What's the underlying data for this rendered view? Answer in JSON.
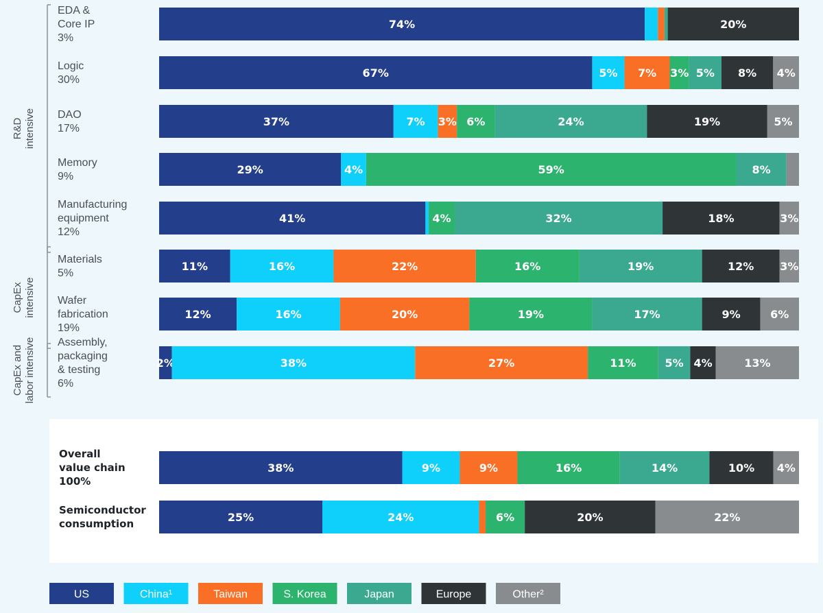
{
  "chart_data": {
    "type": "bar",
    "orientation": "horizontal",
    "stacked": true,
    "normalized": true,
    "series_names": [
      "US",
      "China¹",
      "Taiwan",
      "S. Korea",
      "Japan",
      "Europe",
      "Other²"
    ],
    "colors": [
      "#233e8b",
      "#0fd0fb",
      "#f96f26",
      "#2cb36d",
      "#3aa98f",
      "#2f3437",
      "#888c8e"
    ],
    "label_colors": [
      "#ffffff",
      "#ffffff",
      "#ffffff",
      "#ffffff",
      "#ffffff",
      "#ffffff",
      "#ffffff"
    ],
    "groups": [
      {
        "label_lines": [
          "R&D",
          "intensive"
        ],
        "rows": [
          0,
          4
        ]
      },
      {
        "label_lines": [
          "CapEx",
          "intensive"
        ],
        "rows": [
          5,
          6
        ]
      },
      {
        "label_lines": [
          "CapEx and",
          "labor intensive"
        ],
        "rows": [
          7,
          7
        ]
      }
    ],
    "rows": [
      {
        "label_lines": [
          "EDA &",
          "Core IP",
          "3%"
        ],
        "values": [
          74,
          2,
          1,
          0,
          0.5,
          20,
          0
        ],
        "labels": [
          "74%",
          "",
          "",
          "",
          "",
          "20%",
          ""
        ]
      },
      {
        "label_lines": [
          "Logic",
          "30%"
        ],
        "values": [
          67,
          5,
          7,
          3,
          5,
          8,
          4
        ],
        "labels": [
          "67%",
          "5%",
          "7%",
          "3%",
          "5%",
          "8%",
          "4%"
        ]
      },
      {
        "label_lines": [
          "DAO",
          "17%"
        ],
        "values": [
          37,
          7,
          3,
          6,
          24,
          19,
          5
        ],
        "labels": [
          "37%",
          "7%",
          "3%",
          "6%",
          "24%",
          "19%",
          "5%"
        ]
      },
      {
        "label_lines": [
          "Memory",
          "9%"
        ],
        "values": [
          29,
          4,
          0,
          59,
          8,
          0,
          2
        ],
        "labels": [
          "29%",
          "4%",
          "",
          "59%",
          "8%",
          "",
          ""
        ]
      },
      {
        "label_lines": [
          "Manufacturing",
          "equipment",
          "12%"
        ],
        "values": [
          41,
          0.5,
          0,
          4,
          32,
          18,
          3
        ],
        "labels": [
          "41%",
          "",
          "",
          "4%",
          "32%",
          "18%",
          "3%"
        ]
      },
      {
        "label_lines": [
          "Materials",
          "5%"
        ],
        "values": [
          11,
          16,
          22,
          16,
          19,
          12,
          3
        ],
        "labels": [
          "11%",
          "16%",
          "22%",
          "16%",
          "19%",
          "12%",
          "3%"
        ]
      },
      {
        "label_lines": [
          "Wafer",
          "fabrication",
          "19%"
        ],
        "values": [
          12,
          16,
          20,
          19,
          17,
          9,
          6
        ],
        "labels": [
          "12%",
          "16%",
          "20%",
          "19%",
          "17%",
          "9%",
          "6%"
        ]
      },
      {
        "label_lines": [
          "Assembly,",
          "packaging",
          "& testing",
          "6%"
        ],
        "values": [
          2,
          38,
          27,
          11,
          5,
          4,
          13
        ],
        "labels": [
          "2%",
          "38%",
          "27%",
          "11%",
          "5%",
          "4%",
          "13%"
        ]
      }
    ],
    "totals": [
      {
        "label_lines": [
          "Overall",
          "value chain",
          "100%"
        ],
        "values": [
          38,
          9,
          9,
          16,
          14,
          10,
          4
        ],
        "labels": [
          "38%",
          "9%",
          "9%",
          "16%",
          "14%",
          "10%",
          "4%"
        ]
      },
      {
        "label_lines": [
          "Semiconductor",
          "consumption"
        ],
        "values": [
          25,
          24,
          1,
          6,
          0,
          20,
          22
        ],
        "labels": [
          "25%",
          "24%",
          "",
          "6%",
          "",
          "20%",
          "22%"
        ]
      }
    ],
    "xlim": [
      0,
      100
    ],
    "legend_position": "bottom"
  }
}
